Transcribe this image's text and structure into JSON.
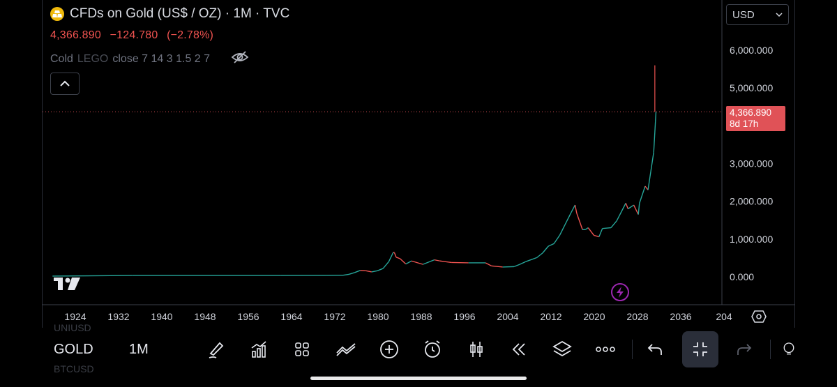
{
  "header": {
    "title": "CFDs on Gold (US$ / OZ) · 1M · TVC",
    "last_price": "4,366.890",
    "change": "−124.780",
    "change_pct": "(−2.78%)",
    "indicator_label": "Cold",
    "indicator_name": "LEGO",
    "indicator_params": "close 7 14 3 1.5 2 7"
  },
  "currency": {
    "label": "USD"
  },
  "price_tag": {
    "price": "4,366.890",
    "countdown": "8d 17h"
  },
  "toolbar": {
    "symbol": "GOLD",
    "interval": "1M",
    "ghost_above": "UNIUSD",
    "ghost_below": "BTCUSD",
    "tools": [
      "brush-icon",
      "indicators-icon",
      "layouts-icon",
      "compare-icon",
      "add-icon",
      "alert-clock-icon",
      "candles-icon",
      "replay-icon",
      "layers-icon",
      "more-icon",
      "undo-icon",
      "collapse-icon",
      "redo-icon",
      "idea-icon"
    ]
  },
  "colors": {
    "up": "#26a69a",
    "down": "#ef5350",
    "price_line": "#e05257",
    "background": "#000000"
  },
  "chart_data": {
    "type": "line",
    "title": "",
    "x_tick_labels": [
      "1924",
      "1932",
      "1940",
      "1948",
      "1956",
      "1964",
      "1972",
      "1980",
      "1988",
      "1996",
      "2004",
      "2012",
      "2020",
      "2028",
      "2036",
      "204"
    ],
    "y_tick_labels": [
      "6,000.000",
      "5,000.000",
      "3,000.000",
      "2,000.000",
      "1,000.000",
      "0.000"
    ],
    "y_ticks": [
      6000,
      5000,
      3000,
      2000,
      1000,
      0
    ],
    "xlim": [
      1920.5,
      2040.5
    ],
    "ylim": [
      -400,
      6600
    ],
    "grid": false,
    "current_price": 4366.89,
    "series": [
      {
        "x": [
          1920,
          1934,
          1960,
          1968,
          1971,
          1972,
          1973,
          1974,
          1975,
          1976,
          1977,
          1978,
          1979,
          1979.8,
          1980,
          1980.3,
          1981,
          1982,
          1983,
          1985,
          1987,
          1988,
          1990,
          1993,
          1996,
          1997,
          1999,
          2001,
          2002,
          2003,
          2005,
          2006,
          2007,
          2008,
          2009,
          2010,
          2011,
          2011.7,
          2012,
          2013,
          2013.5,
          2014,
          2015,
          2015.9,
          2016.5,
          2018,
          2019,
          2020.6,
          2021,
          2022,
          2022.8,
          2023,
          2024,
          2024.5,
          2025,
          2025.5,
          2025.8,
          2025.9
        ],
        "y": [
          20,
          35,
          35,
          38,
          42,
          65,
          112,
          170,
          160,
          130,
          160,
          220,
          400,
          650,
          640,
          520,
          480,
          340,
          420,
          330,
          450,
          420,
          380,
          370,
          370,
          290,
          260,
          270,
          330,
          400,
          510,
          630,
          810,
          880,
          1100,
          1400,
          1700,
          1900,
          1680,
          1250,
          1250,
          1300,
          1100,
          1060,
          1280,
          1300,
          1480,
          1950,
          1800,
          1900,
          1650,
          1950,
          2400,
          2300,
          2800,
          3300,
          4100,
          4366.89
        ]
      }
    ]
  }
}
